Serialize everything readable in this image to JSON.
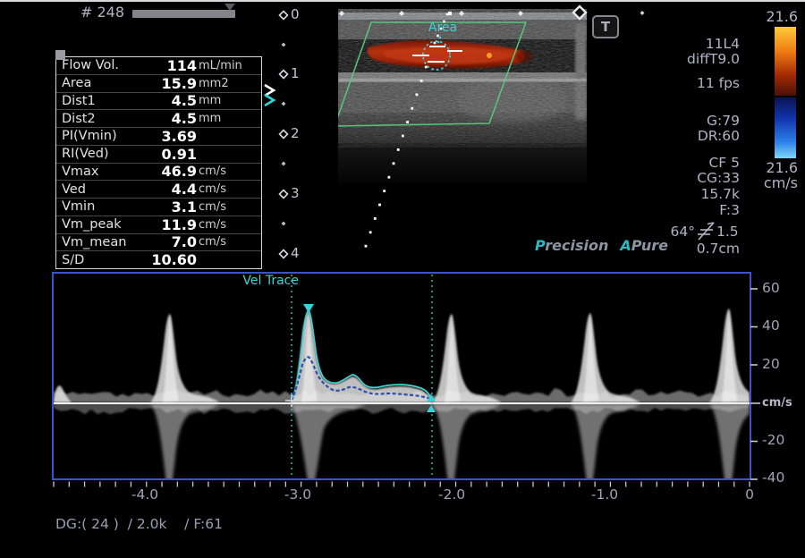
{
  "frame": {
    "counter": "# 248"
  },
  "measurements": {
    "rows": [
      {
        "label": "Flow Vol.",
        "value": "114",
        "unit": "mL/min"
      },
      {
        "label": "Area",
        "value": "15.9",
        "unit": "mm2"
      },
      {
        "label": "Dist1",
        "value": "4.5",
        "unit": "mm"
      },
      {
        "label": "Dist2",
        "value": "4.5",
        "unit": "mm"
      },
      {
        "label": "PI(Vmin)",
        "value": "3.69",
        "unit": ""
      },
      {
        "label": "RI(Ved)",
        "value": "0.91",
        "unit": ""
      },
      {
        "label": "Vmax",
        "value": "46.9",
        "unit": "cm/s"
      },
      {
        "label": "Ved",
        "value": "4.4",
        "unit": "cm/s"
      },
      {
        "label": "Vmin",
        "value": "3.1",
        "unit": "cm/s"
      },
      {
        "label": "Vm_peak",
        "value": "11.9",
        "unit": "cm/s"
      },
      {
        "label": "Vm_mean",
        "value": "7.0",
        "unit": "cm/s"
      },
      {
        "label": "S/D",
        "value": "10.60",
        "unit": ""
      }
    ]
  },
  "depth_scale": {
    "labels": [
      "0",
      "1",
      "2",
      "3",
      "4"
    ]
  },
  "bmode": {
    "area_label": "Area",
    "t_badge": "T"
  },
  "colorbar": {
    "top_label": "21.6",
    "bottom_label": "21.6",
    "unit": "cm/s"
  },
  "panel": {
    "probe": "11L4",
    "thermal": "diffT9.0",
    "fps": "11 fps",
    "gain": "G:79",
    "dynamic_range": "DR:60",
    "cf": "CF 5",
    "cg": "CG:33",
    "prf": "15.7k",
    "filter": "F:3",
    "angle": "64°",
    "steer": "1.5",
    "gate": "0.7cm"
  },
  "brand": {
    "p": "P",
    "precision_rest": "recision",
    "a": "A",
    "pure_rest": "Pure"
  },
  "spectral": {
    "trace_label": "Vel Trace",
    "y_labels": [
      "60",
      "40",
      "20"
    ],
    "y_unit": "cm/s",
    "y_neg_labels": [
      "-20",
      "-40"
    ],
    "x_labels": [
      "-4.0",
      "-3.0",
      "-2.0",
      "-1.0",
      "0"
    ],
    "footer": "DG:( 24 )  / 2.0k    / F:61"
  },
  "colors": {
    "accent_cyan": "#3ed2d6",
    "spectral_border_blue": "#3c55c5",
    "mean_trace_blue": "#2a4fae",
    "roi_green": "#5acb80",
    "flow_red": "#b5320e"
  }
}
